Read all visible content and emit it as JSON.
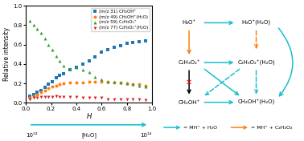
{
  "chart_data": {
    "type": "scatter",
    "x": [
      0.03,
      0.06,
      0.09,
      0.12,
      0.15,
      0.18,
      0.21,
      0.24,
      0.27,
      0.3,
      0.35,
      0.4,
      0.45,
      0.5,
      0.55,
      0.6,
      0.65,
      0.7,
      0.75,
      0.8,
      0.85,
      0.9,
      0.95
    ],
    "series": [
      {
        "name": "(m/z 31) CH₂OH⁺",
        "marker": "square",
        "values": [
          0.07,
          0.09,
          0.11,
          0.13,
          0.16,
          0.19,
          0.22,
          0.26,
          0.28,
          0.3,
          0.34,
          0.37,
          0.4,
          0.43,
          0.47,
          0.52,
          0.55,
          0.57,
          0.59,
          0.61,
          0.62,
          0.63,
          0.64
        ]
      },
      {
        "name": "(m/z 49) CH₂OH⁺(H₂O)",
        "marker": "circle",
        "values": [
          0.05,
          0.07,
          0.09,
          0.11,
          0.13,
          0.15,
          0.17,
          0.18,
          0.19,
          0.2,
          0.21,
          0.21,
          0.21,
          0.22,
          0.22,
          0.22,
          0.22,
          0.21,
          0.21,
          0.2,
          0.19,
          0.19,
          0.18
        ]
      },
      {
        "name": "(m/z 59) C₂H₃O₂⁺",
        "marker": "triangle-up",
        "values": [
          0.84,
          0.8,
          0.76,
          0.72,
          0.66,
          0.6,
          0.55,
          0.48,
          0.43,
          0.38,
          0.35,
          0.37,
          0.34,
          0.32,
          0.27,
          0.24,
          0.22,
          0.22,
          0.21,
          0.2,
          0.19,
          0.18,
          0.17
        ]
      },
      {
        "name": "(m/z 77) C₂H₃O₂⁺(H₂O)",
        "marker": "triangle-down",
        "values": [
          0.04,
          0.05,
          0.05,
          0.06,
          0.06,
          0.06,
          0.06,
          0.07,
          0.06,
          0.06,
          0.06,
          0.06,
          0.05,
          0.05,
          0.05,
          0.05,
          0.04,
          0.04,
          0.04,
          0.04,
          0.04,
          0.04,
          0.03
        ]
      }
    ],
    "xlabel": "H",
    "ylabel": "Relative intensity",
    "xlim": [
      0.0,
      1.0
    ],
    "ylim": [
      0.0,
      1.0
    ],
    "xticks": [
      0.0,
      0.2,
      0.4,
      0.6,
      0.8,
      1.0
    ],
    "yticks": [
      0.0,
      0.2,
      0.4,
      0.6,
      0.8,
      1.0
    ],
    "grid": false,
    "legend": "upper right",
    "annotations": [
      "H₃O⁺",
      "H₃O⁺(H₂O)",
      "C₂H₃O₂⁺",
      "C₂H₃O₂⁺(H₂O)",
      "CH₂OH⁺",
      "CH₂OH⁺(H₂O)",
      "✕",
      "= MH⁺ + H₂O",
      "= MH⁺ + C₂H₂O₂",
      "10¹²",
      "[H₂O]",
      "10¹⁴"
    ]
  }
}
